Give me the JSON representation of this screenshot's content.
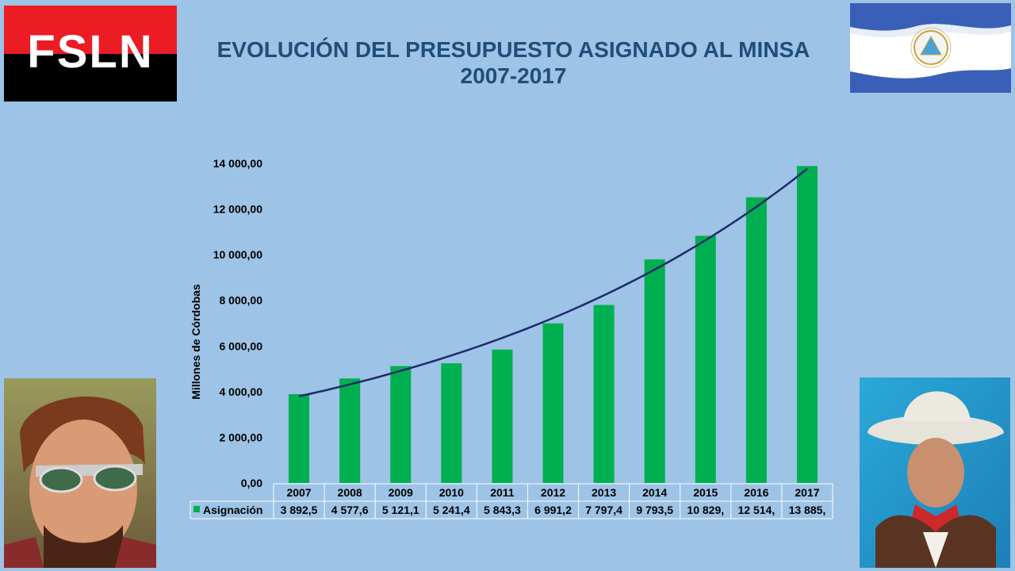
{
  "logo": {
    "text": "FSLN"
  },
  "title": {
    "line1": "EVOLUCIÓN DEL PRESUPUESTO  ASIGNADO AL MINSA",
    "line2": "2007-2017"
  },
  "colors": {
    "background": "#9dc3e6",
    "title": "#1f4e79",
    "bar": "#00b050",
    "trendline": "#1f2a6b",
    "flag_blue": "#3a5fb8",
    "logo_red": "#ec1c24"
  },
  "chart_data": {
    "type": "bar",
    "title": "EVOLUCIÓN DEL PRESUPUESTO  ASIGNADO AL MINSA 2007-2017",
    "ylabel": "Millones de Córdobas",
    "xlabel": "",
    "ylim": [
      0,
      14000
    ],
    "yticks": [
      "0,00",
      "2 000,00",
      "4 000,00",
      "6 000,00",
      "8 000,00",
      "10 000,00",
      "12 000,00",
      "14 000,00"
    ],
    "ytick_values": [
      0,
      2000,
      4000,
      6000,
      8000,
      10000,
      12000,
      14000
    ],
    "categories": [
      "2007",
      "2008",
      "2009",
      "2010",
      "2011",
      "2012",
      "2013",
      "2014",
      "2015",
      "2016",
      "2017"
    ],
    "series": [
      {
        "name": "Asignación",
        "values": [
          3892.5,
          4577.6,
          5121.1,
          5241.4,
          5843.3,
          6991.2,
          7797.4,
          9793.5,
          10829,
          12514,
          13885
        ],
        "table_labels": [
          "3 892,5",
          "4 577,6",
          "5 121,1",
          "5 241,4",
          "5 843,3",
          "6 991,2",
          "7 797,4",
          "9 793,5",
          "10 829,",
          "12 514,",
          "13 885,"
        ]
      }
    ],
    "trendline": "exponential",
    "grid": false,
    "legend": "data-table"
  }
}
